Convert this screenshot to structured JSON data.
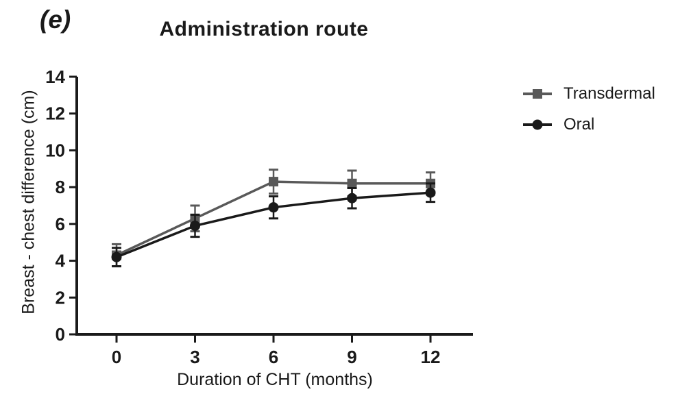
{
  "panel_label": "(e)",
  "chart_data": {
    "type": "line",
    "title": "Administration route",
    "xlabel": "Duration of CHT (months)",
    "ylabel": "Breast - chest difference (cm)",
    "x": [
      0,
      3,
      6,
      9,
      12
    ],
    "x_tick_labels": [
      "0",
      "3",
      "6",
      "9",
      "12"
    ],
    "y_ticks": [
      0,
      2,
      4,
      6,
      8,
      10,
      12,
      14
    ],
    "xlim": [
      0,
      12
    ],
    "ylim": [
      0,
      14
    ],
    "grid": false,
    "legend_position": "right",
    "axis_color": "#1a1a1a",
    "series": [
      {
        "name": "Transdermal",
        "marker": "square",
        "color": "#595959",
        "values": [
          4.3,
          6.3,
          8.3,
          8.2,
          8.2
        ],
        "errors": [
          0.6,
          0.7,
          0.65,
          0.7,
          0.6
        ]
      },
      {
        "name": "Oral",
        "marker": "circle",
        "color": "#1a1a1a",
        "values": [
          4.2,
          5.9,
          6.9,
          7.4,
          7.7
        ],
        "errors": [
          0.5,
          0.6,
          0.6,
          0.55,
          0.5
        ]
      }
    ]
  }
}
